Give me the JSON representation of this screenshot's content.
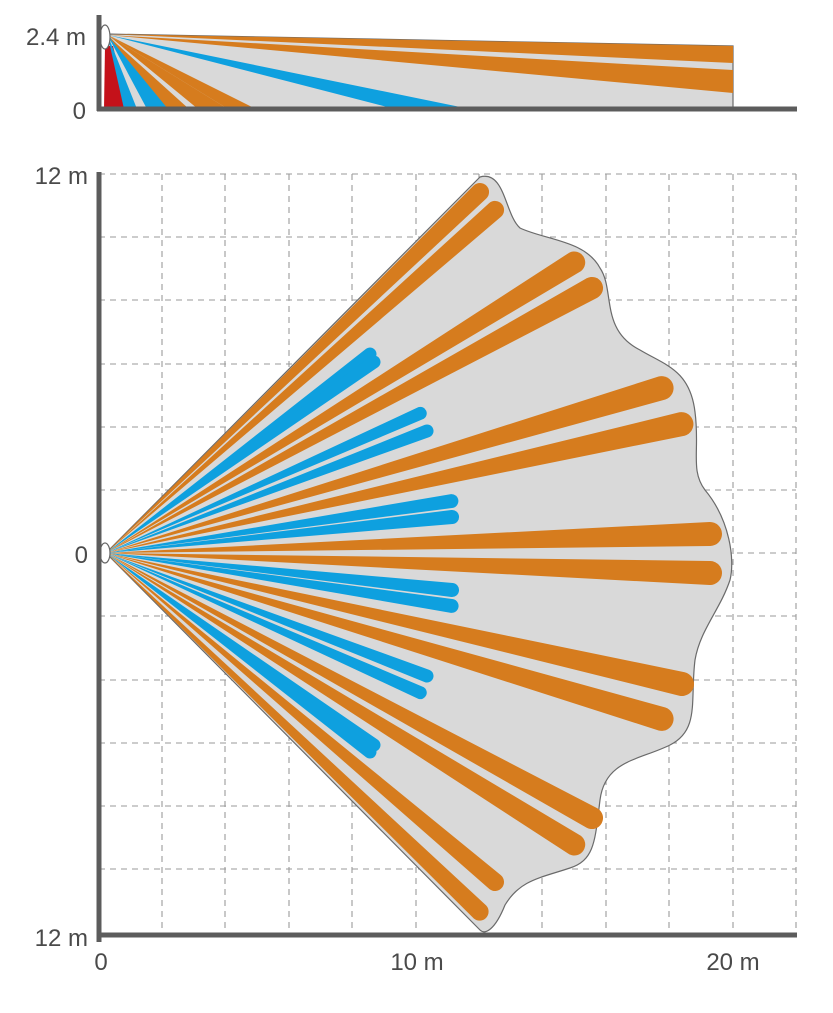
{
  "side_view": {
    "y_labels": {
      "top": "2.4 m",
      "bottom": "0"
    }
  },
  "top_view": {
    "y_labels": {
      "top": "12 m",
      "middle": "0",
      "bottom": "12 m"
    },
    "x_labels": {
      "start": "0",
      "mid": "10 m",
      "end": "20 m"
    }
  },
  "colors": {
    "long_range_beam": "#d67c1e",
    "short_range_beam": "#0ea0df",
    "creep_zone": "#c4111a",
    "coverage_area": "#d9d9d9",
    "axis": "#5c5c5c"
  },
  "icons": {
    "sensor": "sensor-icon"
  }
}
